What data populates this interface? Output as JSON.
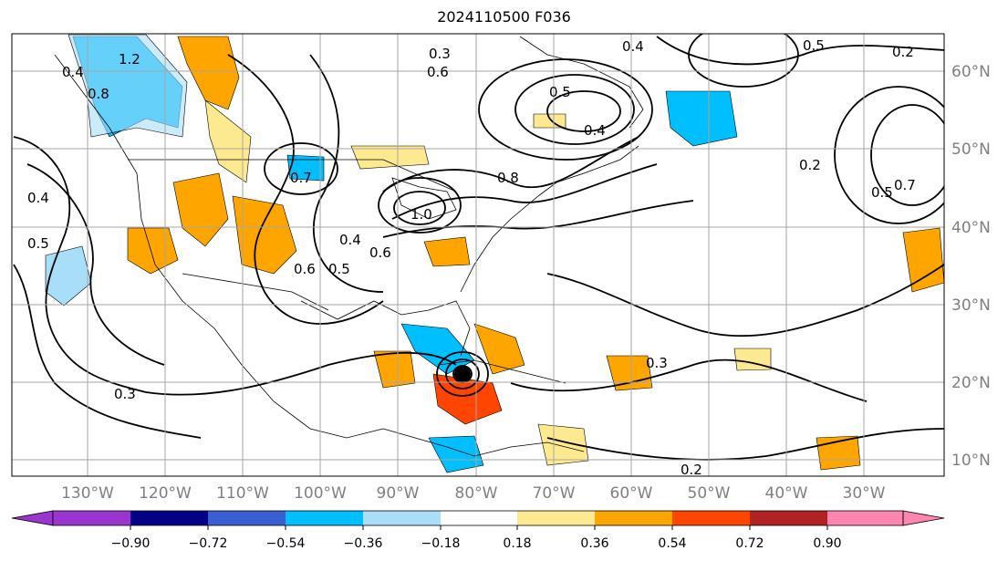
{
  "title": "2024110500 F036",
  "lon_labels": [
    "130°W",
    "120°W",
    "110°W",
    "100°W",
    "90°W",
    "80°W",
    "70°W",
    "60°W",
    "50°W",
    "40°W",
    "30°W"
  ],
  "lat_labels": [
    "60°N",
    "50°N",
    "40°N",
    "30°N",
    "20°N",
    "10°N"
  ],
  "contour_labels": [
    "0.4",
    "0.8",
    "0.5",
    "0.6",
    "0.3",
    "0.2",
    "0.7",
    "1.0",
    "0.8",
    "0.4",
    "0.6",
    "0.5",
    "0.2",
    "0.4",
    "0.5",
    "0.3",
    "0.2",
    "1.2",
    "0.4",
    "0.5",
    "0.7",
    "0.3",
    "0.4",
    "0.5",
    "0.6"
  ],
  "colorbar": {
    "tick_labels": [
      "−0.90",
      "−0.72",
      "−0.54",
      "−0.36",
      "−0.18",
      "0.18",
      "0.36",
      "0.54",
      "0.72",
      "0.90"
    ],
    "colors": [
      "#9b35cf",
      "#05008a",
      "#3a5fd0",
      "#00bfff",
      "#a9def9",
      "#ffffff",
      "#fde98f",
      "#ffa500",
      "#ff4500",
      "#b22222",
      "#ff85b0"
    ]
  },
  "colors": {
    "land_line": "#000000",
    "grid": "#a6a6a6",
    "axis_label": "#808080"
  }
}
